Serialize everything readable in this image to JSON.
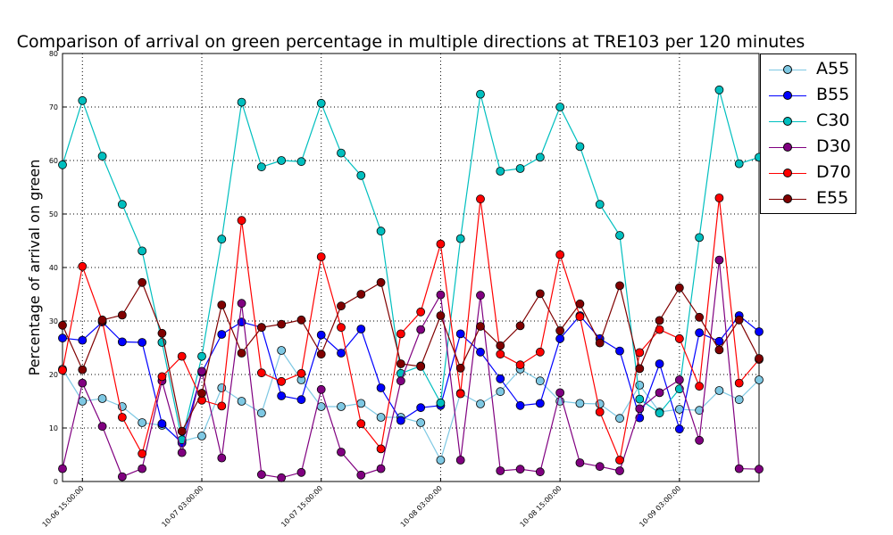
{
  "chart_data": {
    "type": "line",
    "title": "Comparison of arrival on green percentage in multiple directions at TRE103 per 120 minutes",
    "xlabel": "",
    "ylabel": "Percentage of arrival on green",
    "ylim": [
      0,
      80
    ],
    "yticks": [
      "0",
      "10",
      "20",
      "30",
      "40",
      "50",
      "60",
      "70",
      "80"
    ],
    "xticks": [
      "10-06 15:00:00",
      "10-07 03:00:00",
      "10-07 15:00:00",
      "10-08 03:00:00",
      "10-08 15:00:00",
      "10-09 03:00:00"
    ],
    "grid": true,
    "legend_position": "right",
    "x": [
      "10-06 13:00",
      "10-06 15:00",
      "10-06 17:00",
      "10-06 19:00",
      "10-06 21:00",
      "10-06 23:00",
      "10-07 01:00",
      "10-07 03:00",
      "10-07 05:00",
      "10-07 07:00",
      "10-07 09:00",
      "10-07 11:00",
      "10-07 13:00",
      "10-07 15:00",
      "10-07 17:00",
      "10-07 19:00",
      "10-07 21:00",
      "10-07 23:00",
      "10-08 01:00",
      "10-08 03:00",
      "10-08 05:00",
      "10-08 07:00",
      "10-08 09:00",
      "10-08 11:00",
      "10-08 13:00",
      "10-08 15:00",
      "10-08 17:00",
      "10-08 19:00",
      "10-08 21:00",
      "10-08 23:00",
      "10-09 01:00",
      "10-09 03:00",
      "10-09 05:00",
      "10-09 07:00",
      "10-09 09:00",
      "10-09 11:00"
    ],
    "series": [
      {
        "name": "A55",
        "color": "#7ec8e3",
        "values": [
          21,
          15,
          15.5,
          14,
          11,
          10.5,
          7.5,
          8.5,
          17.5,
          15,
          12.8,
          24.5,
          19,
          14,
          14,
          14.6,
          12,
          12,
          11,
          4,
          16.5,
          14.5,
          16.8,
          21,
          18.8,
          15,
          14.6,
          14.5,
          11.8,
          18,
          13,
          13.5,
          13.3,
          17,
          15.3,
          19
        ]
      },
      {
        "name": "B55",
        "color": "#0000ff",
        "values": [
          26.8,
          26.4,
          29.8,
          26.1,
          26,
          10.8,
          7.2,
          20.4,
          27.5,
          29.8,
          28.8,
          16,
          15.3,
          27.4,
          24,
          28.5,
          17.5,
          11.4,
          13.8,
          14.2,
          27.6,
          24.2,
          19.2,
          14.2,
          14.6,
          26.7,
          31,
          26.7,
          24.4,
          11.9,
          22,
          9.8,
          27.8,
          26.2,
          31,
          28
        ]
      },
      {
        "name": "C30",
        "color": "#00bfbf",
        "values": [
          59.2,
          71.2,
          60.8,
          51.8,
          43.1,
          26,
          7.8,
          23.4,
          45.3,
          70.9,
          58.8,
          60,
          59.8,
          70.7,
          61.4,
          57.2,
          46.8,
          20.2,
          21.6,
          14.7,
          45.4,
          72.4,
          58,
          58.5,
          60.6,
          70,
          62.6,
          51.8,
          46,
          15.4,
          12.8,
          17.3,
          45.6,
          73.2,
          59.4,
          60.6
        ]
      },
      {
        "name": "D30",
        "color": "#800080",
        "values": [
          2.4,
          18.4,
          10.3,
          0.9,
          2.4,
          18.8,
          5.4,
          20.6,
          4.4,
          33.3,
          1.3,
          0.7,
          1.7,
          17.2,
          5.5,
          1.2,
          2.4,
          18.8,
          28.4,
          34.9,
          4,
          34.8,
          2,
          2.3,
          1.8,
          16.6,
          3.5,
          2.8,
          2,
          13.6,
          16.6,
          19,
          7.7,
          41.4,
          2.4,
          2.3
        ]
      },
      {
        "name": "D70",
        "color": "#ff0000",
        "values": [
          20.8,
          40.2,
          30,
          12,
          5.2,
          19.6,
          23.4,
          15.2,
          14.1,
          48.8,
          20.3,
          18.7,
          20.2,
          42,
          28.8,
          10.8,
          6.1,
          27.6,
          31.7,
          44.4,
          16.4,
          52.8,
          23.8,
          21.8,
          24.2,
          42.4,
          30.8,
          13,
          4,
          24.1,
          28.4,
          26.7,
          17.8,
          53,
          18.4,
          22.8
        ]
      },
      {
        "name": "E55",
        "color": "#800000",
        "values": [
          29.2,
          20.9,
          30.2,
          31.1,
          37.2,
          27.7,
          9.4,
          16.5,
          33,
          24,
          28.8,
          29.4,
          30.2,
          23.8,
          32.8,
          35,
          37.2,
          22,
          21.5,
          31,
          21.2,
          29,
          25.4,
          29.1,
          35.1,
          28.2,
          33.2,
          25.9,
          36.6,
          21.1,
          30.1,
          36.2,
          30.7,
          24.6,
          30.2,
          23
        ]
      }
    ]
  }
}
